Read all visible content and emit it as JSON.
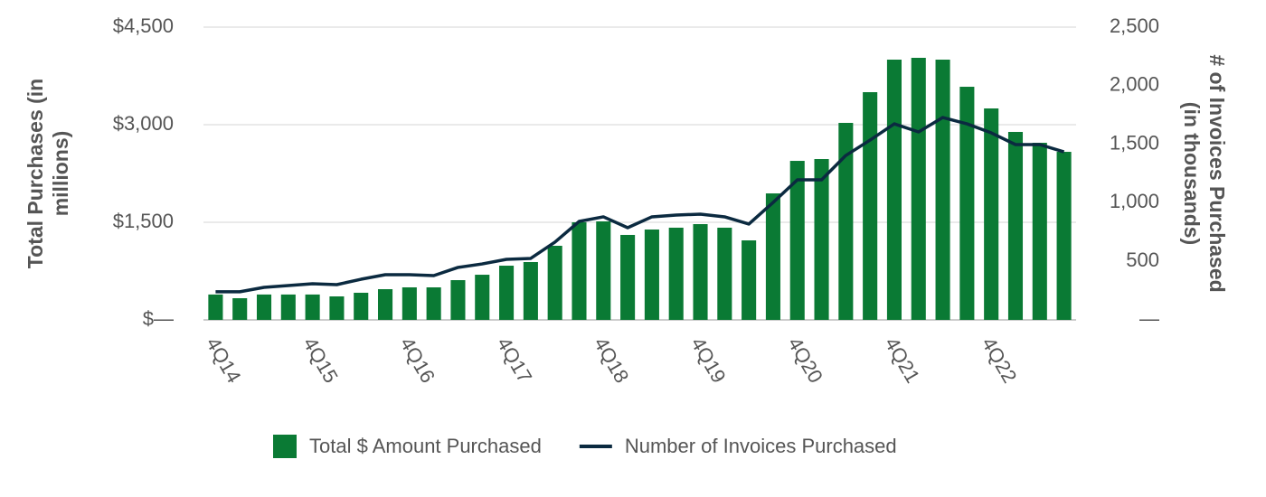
{
  "chart_data": {
    "type": "bar-line",
    "categories": [
      "4Q14",
      null,
      null,
      null,
      "4Q15",
      null,
      null,
      null,
      "4Q16",
      null,
      null,
      null,
      "4Q17",
      null,
      null,
      null,
      "4Q18",
      null,
      null,
      null,
      "4Q19",
      null,
      null,
      null,
      "4Q20",
      null,
      null,
      null,
      "4Q21",
      null,
      null,
      null,
      "4Q22",
      null,
      null,
      null
    ],
    "y_label": "Total Purchases (in millions)",
    "y2_label": "# of Invoices Purchased (in thousands)",
    "series": [
      {
        "name": "Total $ Amount Purchased",
        "type": "bar",
        "color": "#0a7a34",
        "values": [
          390,
          333,
          390,
          390,
          390,
          361,
          417,
          472,
          500,
          500,
          611,
          694,
          833,
          889,
          1139,
          1500,
          1514,
          1306,
          1389,
          1417,
          1472,
          1417,
          1222,
          1944,
          2444,
          2472,
          3028,
          3500,
          4000,
          4028,
          4000,
          3583,
          3250,
          2889,
          2722,
          2583
        ]
      },
      {
        "name": "Number of Invoices Purchased",
        "type": "line",
        "axis": "y2",
        "color": "#0b2a40",
        "values": [
          240,
          240,
          278,
          293,
          309,
          301,
          347,
          386,
          386,
          378,
          448,
          478,
          517,
          525,
          664,
          841,
          880,
          787,
          880,
          895,
          903,
          880,
          818,
          1003,
          1196,
          1196,
          1404,
          1535,
          1674,
          1605,
          1728,
          1674,
          1597,
          1497,
          1497,
          1435
        ]
      }
    ],
    "ylim": [
      0,
      4500
    ],
    "yticks": [
      {
        "value": 0,
        "label": "$—"
      },
      {
        "value": 1500,
        "label": "$1,500"
      },
      {
        "value": 3000,
        "label": "$3,000"
      },
      {
        "value": 4500,
        "label": "$4,500"
      }
    ],
    "y2lim": [
      0,
      2500
    ],
    "y2ticks": [
      {
        "value": 0,
        "label": "—"
      },
      500,
      {
        "value": 1000,
        "label": "1,000"
      },
      {
        "value": 1500,
        "label": "1,500"
      },
      {
        "value": 2000,
        "label": "2,000"
      },
      {
        "value": 2500,
        "label": "2,500"
      }
    ],
    "grid": true
  }
}
